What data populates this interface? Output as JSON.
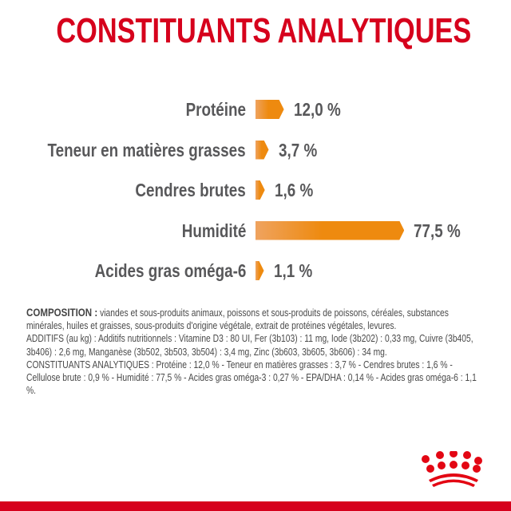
{
  "chart_data": {
    "type": "bar",
    "orientation": "horizontal",
    "title": "CONSTITUANTS ANALYTIQUES",
    "categories": [
      "Protéine",
      "Teneur en matières grasses",
      "Cendres brutes",
      "Humidité",
      "Acides gras oméga-6"
    ],
    "values": [
      12.0,
      3.7,
      1.6,
      77.5,
      1.1
    ],
    "value_labels": [
      "12,0 %",
      "3,7 %",
      "1,6 %",
      "77,5 %",
      "1,1 %"
    ],
    "unit": "%",
    "grid": false,
    "bar_color": "#ee8a0f"
  },
  "composition": {
    "heading": "COMPOSITION :",
    "text": "viandes et sous-produits animaux, poissons et sous-produits de poissons, céréales, substances minérales, huiles et graisses, sous-produits d'origine végétale, extrait de protéines végétales, levures.",
    "additifs": "ADDITIFS (au kg) : Additifs nutritionnels : Vitamine D3 : 80 UI, Fer (3b103) : 11 mg, Iode (3b202) : 0,33 mg, Cuivre (3b405, 3b406) : 2,6 mg, Manganèse (3b502, 3b503, 3b504) : 3,4 mg, Zinc (3b603, 3b605, 3b606) : 34 mg.",
    "constituants": "CONSTITUANTS ANALYTIQUES : Protéine : 12,0 % - Teneur en matières grasses : 3,7 % - Cendres brutes : 1,6 % - Cellulose brute : 0,9 % - Humidité : 77,5 % - Acides gras oméga-3 : 0,27 % - EPA/DHA : 0,14 % - Acides gras oméga-6 : 1,1 %."
  },
  "brand_color": "#d6001c",
  "logo": "royal-canin-crown-icon"
}
